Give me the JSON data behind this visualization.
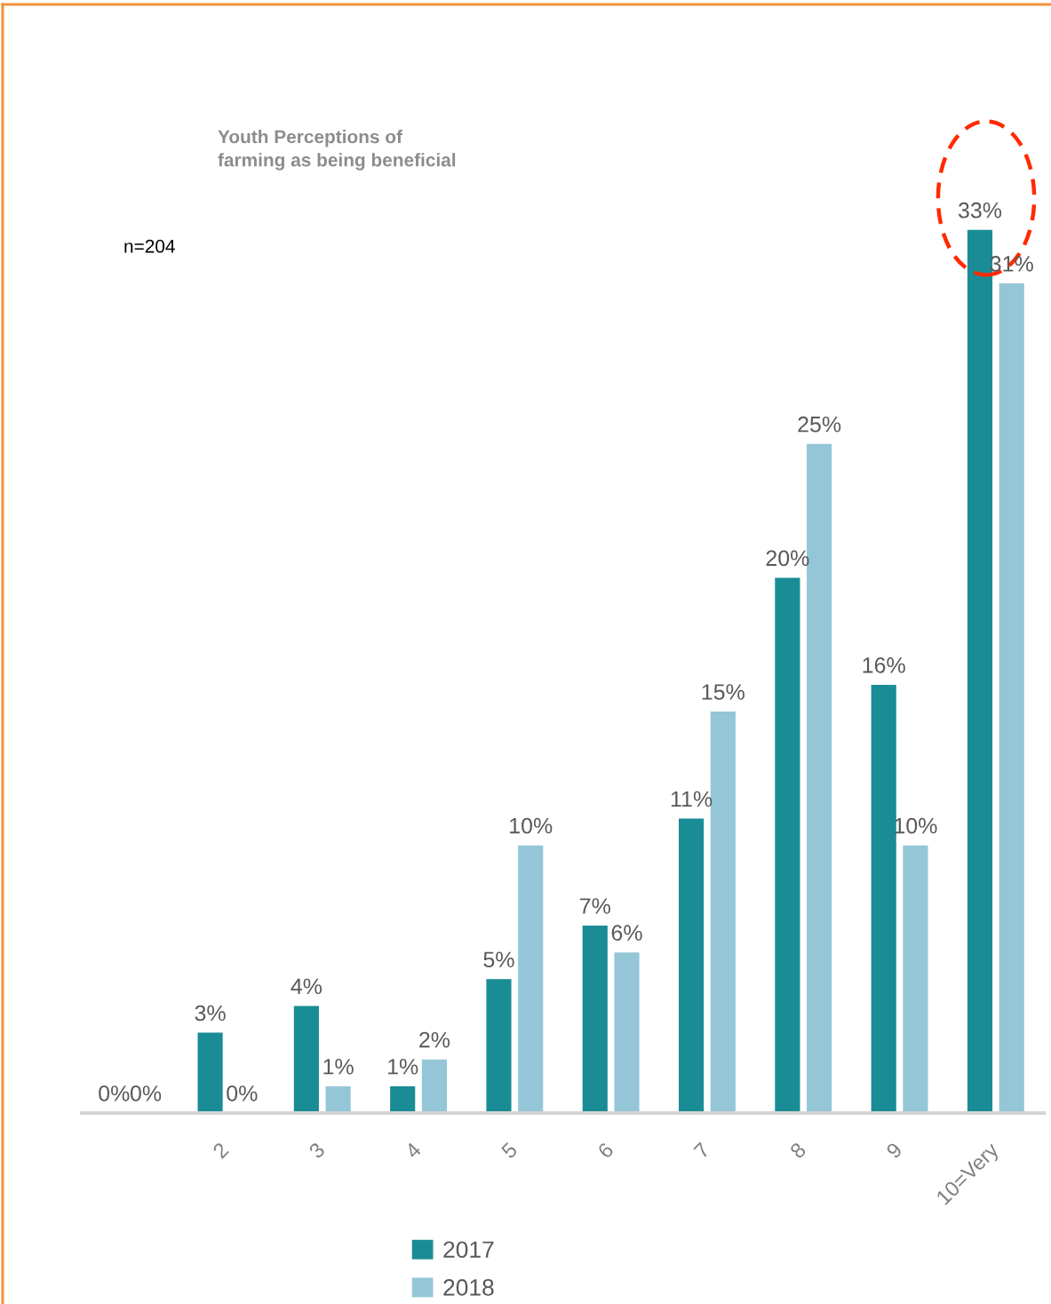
{
  "chart_data": {
    "type": "bar",
    "title": "Youth Perceptions of\nfarming as being beneficial",
    "annotations": [
      "n=204"
    ],
    "categories": [
      null,
      "2",
      "3",
      "4",
      "5",
      "6",
      "7",
      "8",
      "9",
      "10=Very"
    ],
    "series": [
      {
        "name": "2017",
        "color": "#1a8c95",
        "values": [
          0,
          3,
          4,
          1,
          5,
          7,
          11,
          20,
          16,
          33
        ],
        "value_labels": [
          "0%",
          "3%",
          "4%",
          "1%",
          "5%",
          "7%",
          "11%",
          "20%",
          "16%",
          "33%"
        ]
      },
      {
        "name": "2018",
        "color": "#94c6d8",
        "values": [
          0,
          0,
          1,
          2,
          10,
          6,
          15,
          25,
          10,
          31
        ],
        "value_labels": [
          "0%",
          "0%",
          "1%",
          "2%",
          "10%",
          "6%",
          "15%",
          "25%",
          "10%",
          "31%"
        ]
      }
    ],
    "legend": "bottom"
  }
}
